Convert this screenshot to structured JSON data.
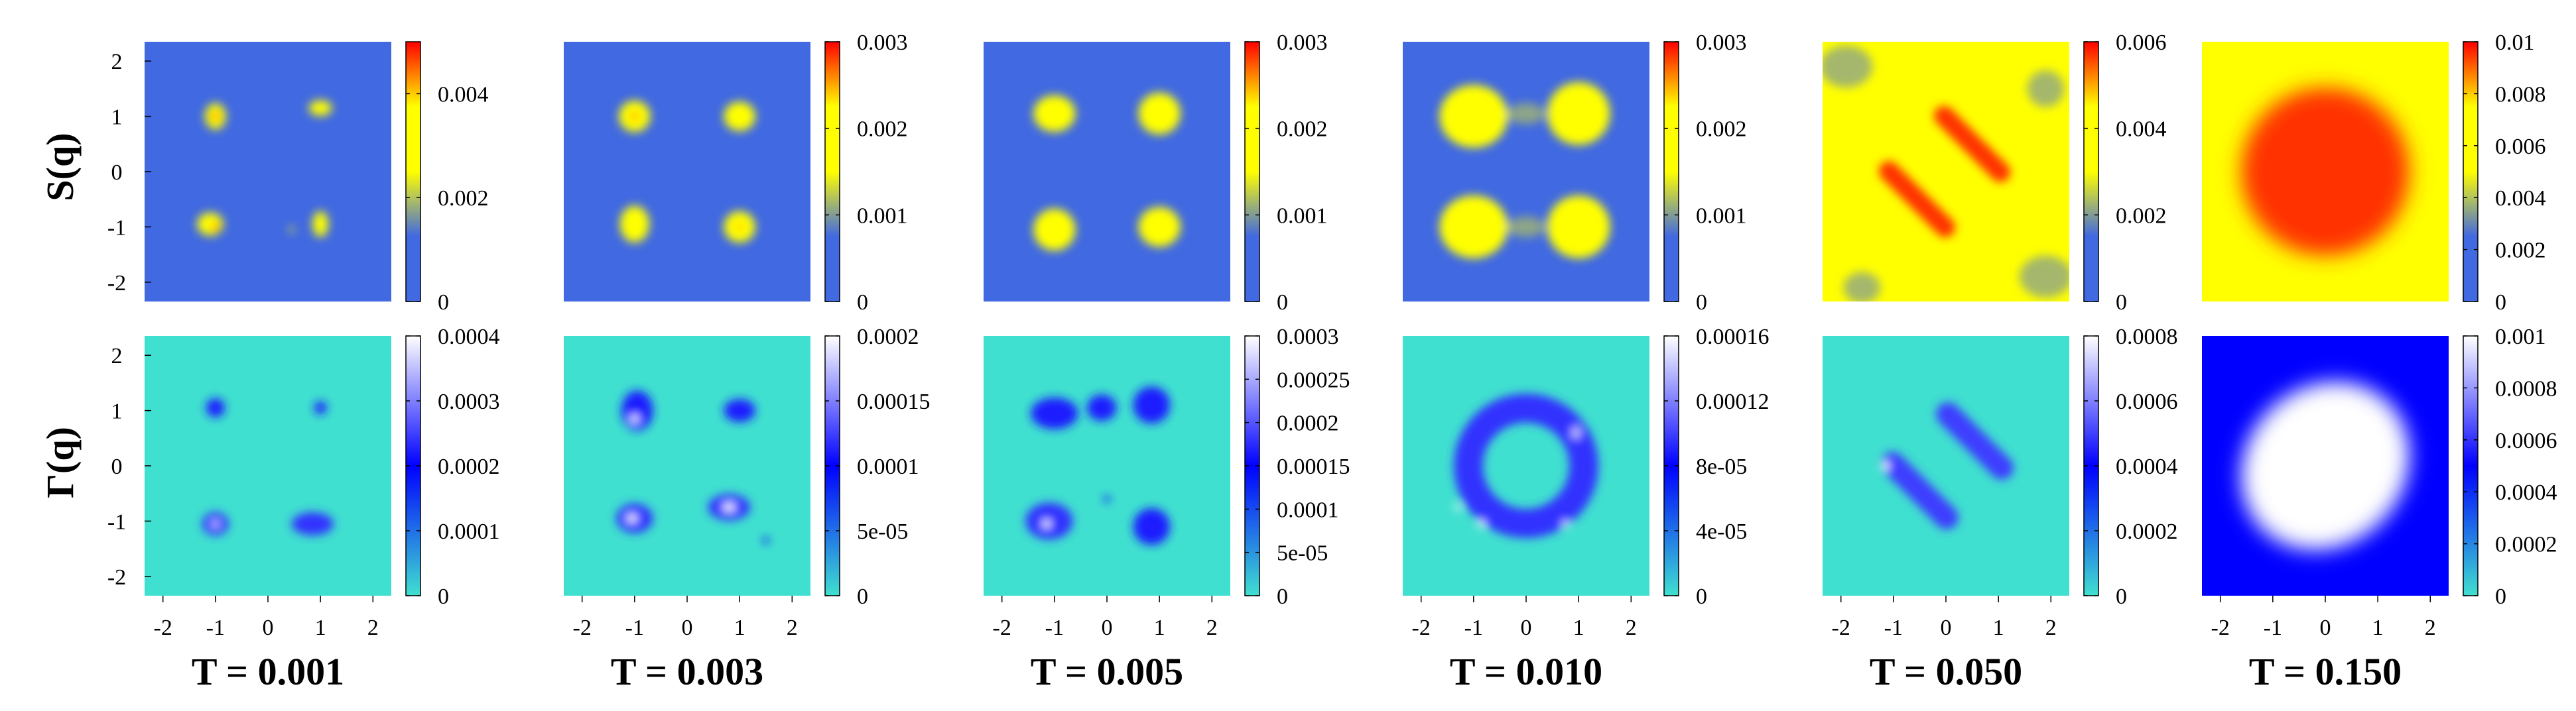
{
  "row_labels": [
    "S(q)",
    "Γ(q)"
  ],
  "x_ticks": [
    "-2",
    "-1",
    "0",
    "1",
    "2"
  ],
  "y_ticks": [
    "2",
    "1",
    "0",
    "-1",
    "-2"
  ],
  "axis_range": [
    -2.35,
    2.35
  ],
  "colors": {
    "s_low": "#4169e1",
    "s_mid": "#ffff00",
    "s_high": "#ff0000",
    "g_low": "#40e0d0",
    "g_mid": "#0000ff",
    "g_high": "#ffffff"
  },
  "chart_data": [
    {
      "type": "heatmap",
      "title": "T = 0.001",
      "panels": [
        {
          "quantity": "S(q)",
          "colorbar_ticks": [
            "0.004",
            "0.002",
            "0"
          ],
          "colorbar_range": [
            0,
            0.005
          ],
          "colormap": [
            "#4169e1",
            "#4169e1",
            "#ffff00",
            "#ffff00",
            "#ff0000"
          ],
          "background": "#4169e1",
          "features": [
            {
              "kind": "spot",
              "x": -1.0,
              "y": 1.0,
              "rx": 0.2,
              "ry": 0.25,
              "level": 0.6
            },
            {
              "kind": "spot",
              "x": -1.0,
              "y": 1.0,
              "rx": 0.07,
              "ry": 0.07,
              "level": 0.98
            },
            {
              "kind": "spot",
              "x": 1.0,
              "y": 1.15,
              "rx": 0.22,
              "ry": 0.15,
              "level": 0.6
            },
            {
              "kind": "spot",
              "x": -1.1,
              "y": -0.95,
              "rx": 0.25,
              "ry": 0.22,
              "level": 0.6
            },
            {
              "kind": "spot",
              "x": -1.0,
              "y": -1.0,
              "rx": 0.06,
              "ry": 0.06,
              "level": 0.98
            },
            {
              "kind": "spot",
              "x": 1.0,
              "y": -0.95,
              "rx": 0.15,
              "ry": 0.25,
              "level": 0.6
            },
            {
              "kind": "spot",
              "x": 0.45,
              "y": -1.05,
              "rx": 0.05,
              "ry": 0.05,
              "level": 0.6
            }
          ]
        },
        {
          "quantity": "Γ(q)",
          "colorbar_ticks": [
            "0.0004",
            "0.0003",
            "0.0002",
            "0.0001",
            "0"
          ],
          "colorbar_range": [
            0,
            0.0004
          ],
          "colormap": [
            "#40e0d0",
            "#0000ff",
            "#ffffff"
          ],
          "background": "#40e0d0",
          "features": [
            {
              "kind": "spot",
              "x": -1.0,
              "y": 1.05,
              "rx": 0.18,
              "ry": 0.18,
              "level": 0.55
            },
            {
              "kind": "spot",
              "x": 1.0,
              "y": 1.05,
              "rx": 0.12,
              "ry": 0.12,
              "level": 0.55
            },
            {
              "kind": "spot",
              "x": -1.0,
              "y": -1.05,
              "rx": 0.25,
              "ry": 0.22,
              "level": 0.6
            },
            {
              "kind": "spot",
              "x": -1.0,
              "y": -1.05,
              "rx": 0.06,
              "ry": 0.06,
              "level": 1.0
            },
            {
              "kind": "spot",
              "x": 0.85,
              "y": -1.05,
              "rx": 0.4,
              "ry": 0.22,
              "level": 0.6
            }
          ]
        }
      ]
    },
    {
      "type": "heatmap",
      "title": "T = 0.003",
      "panels": [
        {
          "quantity": "S(q)",
          "colorbar_ticks": [
            "0.003",
            "0.002",
            "0.001",
            "0"
          ],
          "colorbar_range": [
            0,
            0.003
          ],
          "colormap": [
            "#4169e1",
            "#4169e1",
            "#ffff00",
            "#ffff00",
            "#ff0000"
          ],
          "background": "#4169e1",
          "features": [
            {
              "kind": "spot",
              "x": -1.0,
              "y": 1.0,
              "rx": 0.3,
              "ry": 0.3,
              "level": 0.6
            },
            {
              "kind": "spot",
              "x": -1.0,
              "y": 1.0,
              "rx": 0.08,
              "ry": 0.08,
              "level": 0.85
            },
            {
              "kind": "spot",
              "x": 1.0,
              "y": 1.0,
              "rx": 0.3,
              "ry": 0.28,
              "level": 0.55
            },
            {
              "kind": "spot",
              "x": -1.0,
              "y": -0.95,
              "rx": 0.28,
              "ry": 0.35,
              "level": 0.55
            },
            {
              "kind": "spot",
              "x": 1.0,
              "y": -1.0,
              "rx": 0.3,
              "ry": 0.3,
              "level": 0.55
            },
            {
              "kind": "spot",
              "x": 1.0,
              "y": -1.0,
              "rx": 0.08,
              "ry": 0.08,
              "level": 0.8
            }
          ]
        },
        {
          "quantity": "Γ(q)",
          "colorbar_ticks": [
            "0.0002",
            "0.00015",
            "0.0001",
            "5e-05",
            "0"
          ],
          "colorbar_range": [
            0,
            0.0002
          ],
          "colormap": [
            "#40e0d0",
            "#0000ff",
            "#ffffff"
          ],
          "background": "#40e0d0",
          "features": [
            {
              "kind": "spot",
              "x": -0.95,
              "y": 1.0,
              "rx": 0.3,
              "ry": 0.38,
              "level": 0.55
            },
            {
              "kind": "spot",
              "x": -1.0,
              "y": 0.85,
              "rx": 0.08,
              "ry": 0.08,
              "level": 1.0
            },
            {
              "kind": "spot",
              "x": 1.0,
              "y": 1.0,
              "rx": 0.3,
              "ry": 0.22,
              "level": 0.55
            },
            {
              "kind": "spot",
              "x": -1.0,
              "y": -0.95,
              "rx": 0.35,
              "ry": 0.28,
              "level": 0.6
            },
            {
              "kind": "spot",
              "x": -1.05,
              "y": -0.95,
              "rx": 0.1,
              "ry": 0.08,
              "level": 1.0
            },
            {
              "kind": "spot",
              "x": 0.8,
              "y": -0.75,
              "rx": 0.4,
              "ry": 0.25,
              "level": 0.6
            },
            {
              "kind": "spot",
              "x": 0.8,
              "y": -0.75,
              "rx": 0.12,
              "ry": 0.08,
              "level": 1.0
            },
            {
              "kind": "spot",
              "x": 1.5,
              "y": -1.35,
              "rx": 0.06,
              "ry": 0.06,
              "level": 0.55
            }
          ]
        }
      ]
    },
    {
      "type": "heatmap",
      "title": "T = 0.005",
      "panels": [
        {
          "quantity": "S(q)",
          "colorbar_ticks": [
            "0.003",
            "0.002",
            "0.001",
            "0"
          ],
          "colorbar_range": [
            0,
            0.003
          ],
          "colormap": [
            "#4169e1",
            "#4169e1",
            "#ffff00",
            "#ffff00",
            "#ff0000"
          ],
          "background": "#4169e1",
          "features": [
            {
              "kind": "spot",
              "x": -1.0,
              "y": 1.05,
              "rx": 0.4,
              "ry": 0.35,
              "level": 0.55
            },
            {
              "kind": "spot",
              "x": 1.0,
              "y": 1.05,
              "rx": 0.4,
              "ry": 0.4,
              "level": 0.55
            },
            {
              "kind": "spot",
              "x": -1.0,
              "y": -1.05,
              "rx": 0.4,
              "ry": 0.4,
              "level": 0.55
            },
            {
              "kind": "spot",
              "x": 1.0,
              "y": -1.0,
              "rx": 0.4,
              "ry": 0.38,
              "level": 0.55
            }
          ]
        },
        {
          "quantity": "Γ(q)",
          "colorbar_ticks": [
            "0.0003",
            "0.00025",
            "0.0002",
            "0.00015",
            "0.0001",
            "5e-05",
            "0"
          ],
          "colorbar_range": [
            0,
            0.0003
          ],
          "colormap": [
            "#40e0d0",
            "#0000ff",
            "#ffffff"
          ],
          "background": "#40e0d0",
          "features": [
            {
              "kind": "spot",
              "x": -1.0,
              "y": 0.95,
              "rx": 0.45,
              "ry": 0.3,
              "level": 0.55
            },
            {
              "kind": "spot",
              "x": -0.1,
              "y": 1.05,
              "rx": 0.28,
              "ry": 0.25,
              "level": 0.55
            },
            {
              "kind": "spot",
              "x": 0.85,
              "y": 1.1,
              "rx": 0.35,
              "ry": 0.35,
              "level": 0.55
            },
            {
              "kind": "spot",
              "x": -1.1,
              "y": -1.0,
              "rx": 0.45,
              "ry": 0.35,
              "level": 0.6
            },
            {
              "kind": "spot",
              "x": -1.15,
              "y": -1.05,
              "rx": 0.08,
              "ry": 0.08,
              "level": 1.0
            },
            {
              "kind": "spot",
              "x": 0.85,
              "y": -1.1,
              "rx": 0.35,
              "ry": 0.35,
              "level": 0.55
            },
            {
              "kind": "spot",
              "x": 0.0,
              "y": -0.6,
              "rx": 0.06,
              "ry": 0.06,
              "level": 0.55
            }
          ]
        }
      ]
    },
    {
      "type": "heatmap",
      "title": "T = 0.010",
      "panels": [
        {
          "quantity": "S(q)",
          "colorbar_ticks": [
            "0.003",
            "0.002",
            "0.001",
            "0"
          ],
          "colorbar_range": [
            0,
            0.003
          ],
          "colormap": [
            "#4169e1",
            "#4169e1",
            "#ffff00",
            "#ffff00",
            "#ff0000"
          ],
          "background": "#4169e1",
          "features": [
            {
              "kind": "spot",
              "x": -1.0,
              "y": 1.0,
              "rx": 0.65,
              "ry": 0.6,
              "level": 0.5
            },
            {
              "kind": "spot",
              "x": 1.0,
              "y": 1.05,
              "rx": 0.6,
              "ry": 0.6,
              "level": 0.5
            },
            {
              "kind": "spot",
              "x": -1.0,
              "y": -1.0,
              "rx": 0.65,
              "ry": 0.6,
              "level": 0.5
            },
            {
              "kind": "spot",
              "x": 1.0,
              "y": -1.0,
              "rx": 0.6,
              "ry": 0.6,
              "level": 0.5
            },
            {
              "kind": "spot",
              "x": 0.0,
              "y": 1.05,
              "rx": 0.35,
              "ry": 0.2,
              "level": 0.35
            },
            {
              "kind": "spot",
              "x": 0.0,
              "y": -1.0,
              "rx": 0.35,
              "ry": 0.2,
              "level": 0.35
            }
          ]
        },
        {
          "quantity": "Γ(q)",
          "colorbar_ticks": [
            "0.00016",
            "0.00012",
            "8e-05",
            "4e-05",
            "0"
          ],
          "colorbar_range": [
            0,
            0.00016
          ],
          "colormap": [
            "#40e0d0",
            "#0000ff",
            "#ffffff"
          ],
          "background": "#40e0d0",
          "features": [
            {
              "kind": "ring",
              "x": 0.0,
              "y": 0.0,
              "r": 1.1,
              "w": 0.55,
              "level": 0.6
            },
            {
              "kind": "spot",
              "x": -1.3,
              "y": -0.75,
              "rx": 0.06,
              "ry": 0.06,
              "level": 1.0
            },
            {
              "kind": "spot",
              "x": -0.85,
              "y": -1.05,
              "rx": 0.07,
              "ry": 0.07,
              "level": 1.0
            },
            {
              "kind": "spot",
              "x": 0.75,
              "y": -1.05,
              "rx": 0.06,
              "ry": 0.06,
              "level": 1.0
            },
            {
              "kind": "spot",
              "x": 0.95,
              "y": 0.6,
              "rx": 0.08,
              "ry": 0.12,
              "level": 0.9
            }
          ]
        }
      ]
    },
    {
      "type": "heatmap",
      "title": "T = 0.050",
      "panels": [
        {
          "quantity": "S(q)",
          "colorbar_ticks": [
            "0.006",
            "0.004",
            "0.002",
            "0"
          ],
          "colorbar_range": [
            0,
            0.006
          ],
          "colormap": [
            "#4169e1",
            "#4169e1",
            "#ffff00",
            "#ffff00",
            "#ff0000"
          ],
          "background": "#ffff00",
          "features": [
            {
              "kind": "band",
              "x": -0.55,
              "y": -0.5,
              "len": 1.9,
              "w": 0.38,
              "angle": -45,
              "level": 0.95
            },
            {
              "kind": "band",
              "x": 0.5,
              "y": 0.5,
              "len": 1.9,
              "w": 0.38,
              "angle": -45,
              "level": 0.95
            },
            {
              "kind": "spot",
              "x": -1.9,
              "y": 1.9,
              "rx": 0.5,
              "ry": 0.4,
              "level": 0.38
            },
            {
              "kind": "spot",
              "x": 1.9,
              "y": -1.9,
              "rx": 0.5,
              "ry": 0.4,
              "level": 0.38
            },
            {
              "kind": "spot",
              "x": 1.9,
              "y": 1.5,
              "rx": 0.35,
              "ry": 0.35,
              "level": 0.38
            },
            {
              "kind": "spot",
              "x": -1.6,
              "y": -2.1,
              "rx": 0.35,
              "ry": 0.3,
              "level": 0.38
            }
          ]
        },
        {
          "quantity": "Γ(q)",
          "colorbar_ticks": [
            "0.0008",
            "0.0006",
            "0.0004",
            "0.0002",
            "0"
          ],
          "colorbar_range": [
            0,
            0.0008
          ],
          "colormap": [
            "#40e0d0",
            "#0000ff",
            "#ffffff"
          ],
          "background": "#40e0d0",
          "features": [
            {
              "kind": "band",
              "x": -0.5,
              "y": -0.45,
              "len": 1.9,
              "w": 0.45,
              "angle": -45,
              "level": 0.62
            },
            {
              "kind": "band",
              "x": 0.55,
              "y": 0.45,
              "len": 1.9,
              "w": 0.45,
              "angle": -45,
              "level": 0.62
            },
            {
              "kind": "spot",
              "x": -1.15,
              "y": 0.0,
              "rx": 0.08,
              "ry": 0.08,
              "level": 1.0
            }
          ]
        }
      ]
    },
    {
      "type": "heatmap",
      "title": "T = 0.150",
      "panels": [
        {
          "quantity": "S(q)",
          "colorbar_ticks": [
            "0.01",
            "0.008",
            "0.006",
            "0.004",
            "0.002",
            "0"
          ],
          "colorbar_range": [
            0,
            0.01
          ],
          "colormap": [
            "#4169e1",
            "#4169e1",
            "#ffff00",
            "#ffff00",
            "#ff0000"
          ],
          "background": "#ffff00",
          "features": [
            {
              "kind": "spot",
              "x": 0.0,
              "y": 0.0,
              "rx": 1.6,
              "ry": 1.6,
              "level": 0.95,
              "angle": 45
            }
          ]
        },
        {
          "quantity": "Γ(q)",
          "colorbar_ticks": [
            "0.001",
            "0.0008",
            "0.0006",
            "0.0004",
            "0.0002",
            "0"
          ],
          "colorbar_range": [
            0,
            0.001
          ],
          "colormap": [
            "#40e0d0",
            "#0000ff",
            "#ffffff"
          ],
          "background": "#0000ff",
          "features": [
            {
              "kind": "spot",
              "x": 0.0,
              "y": 0.0,
              "rx": 1.7,
              "ry": 1.5,
              "level": 1.0,
              "angle": 45
            }
          ]
        }
      ]
    }
  ]
}
